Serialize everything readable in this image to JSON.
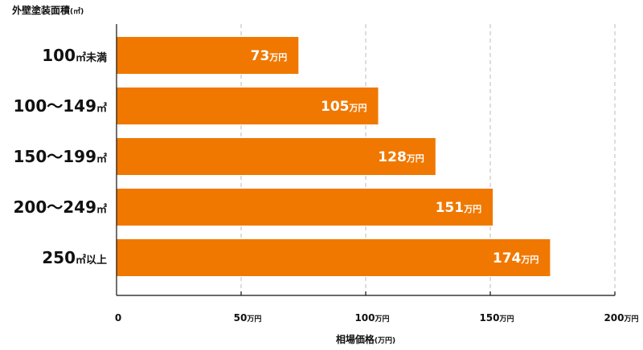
{
  "chart_data": {
    "type": "bar",
    "orientation": "horizontal",
    "ylabel": "外壁塗装面積",
    "ylabel_unit": "(㎡)",
    "xlabel": "相場価格",
    "xlabel_unit": "(万円)",
    "unit": "万円",
    "categories": [
      [
        "100",
        "㎡未満"
      ],
      [
        "100～149",
        "㎡"
      ],
      [
        "150～199",
        "㎡"
      ],
      [
        "200～249",
        "㎡"
      ],
      [
        "250",
        "㎡以上"
      ]
    ],
    "values": [
      73,
      105,
      128,
      151,
      174
    ],
    "xlim": [
      0,
      200
    ],
    "xticks": [
      0,
      50,
      100,
      150,
      200
    ],
    "grid": true,
    "bar_color": "#F07800",
    "grid_color": "#bbbbbb"
  }
}
